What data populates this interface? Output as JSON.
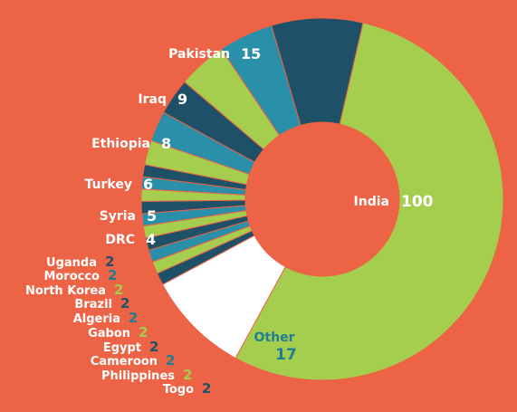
{
  "chart_data": {
    "type": "pie",
    "style": "donut",
    "categories": [
      "India",
      "Other",
      "Togo",
      "Philippines",
      "Cameroon",
      "Egypt",
      "Gabon",
      "Algeria",
      "Brazil",
      "North Korea",
      "Morocco",
      "Uganda",
      "DRC",
      "Syria",
      "Turkey",
      "Ethiopia",
      "Iraq",
      "Pakistan"
    ],
    "values": [
      100,
      17,
      2,
      2,
      2,
      2,
      2,
      2,
      2,
      2,
      2,
      2,
      4,
      5,
      6,
      8,
      9,
      15
    ],
    "title": "",
    "legend": "none"
  },
  "colors": {
    "background": "#ED6345",
    "green": "#A5CD4E",
    "navy": "#1E5167",
    "teal": "#2A8FA8",
    "other": "#FFFFFF",
    "label_white": "#FFFFFF",
    "label_teal": "#1E7E96"
  }
}
